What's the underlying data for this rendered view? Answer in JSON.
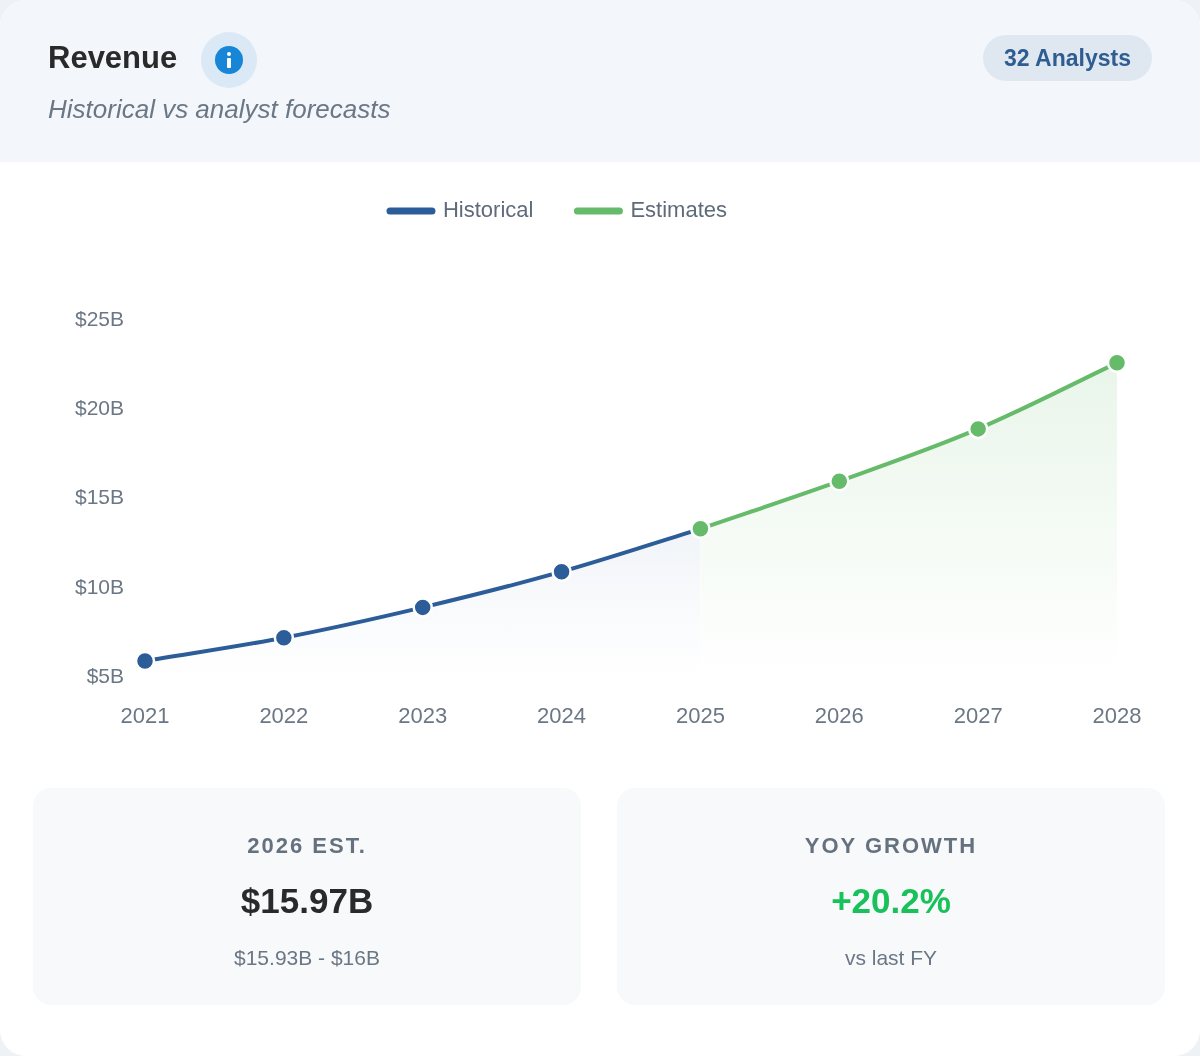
{
  "chart_data": {
    "type": "area",
    "title": "Revenue",
    "subtitle": "Historical vs analyst forecasts",
    "categories": [
      "2021",
      "2022",
      "2023",
      "2024",
      "2025",
      "2026",
      "2027",
      "2028"
    ],
    "series": [
      {
        "name": "Historical",
        "color": "#2c5d99",
        "values": [
          5.9,
          7.2,
          8.9,
          10.9,
          13.3,
          null,
          null,
          null
        ]
      },
      {
        "name": "Estimates",
        "color": "#66bb6a",
        "values": [
          null,
          null,
          null,
          null,
          13.3,
          15.97,
          18.9,
          22.6
        ]
      }
    ],
    "ylim": [
      5,
      25
    ],
    "yticks": [
      {
        "value": 5,
        "label": "$5B"
      },
      {
        "value": 10,
        "label": "$10B"
      },
      {
        "value": 15,
        "label": "$15B"
      },
      {
        "value": 20,
        "label": "$20B"
      },
      {
        "value": 25,
        "label": "$25B"
      }
    ],
    "grid": false,
    "legend": "top",
    "marker": "circle",
    "line_style": "solid",
    "annotations": [
      "32 Analysts",
      "2026 EST.",
      "$15.97B",
      "$15.93B - $16B",
      "YOY GROWTH",
      "+20.2%",
      "vs last FY"
    ]
  }
}
